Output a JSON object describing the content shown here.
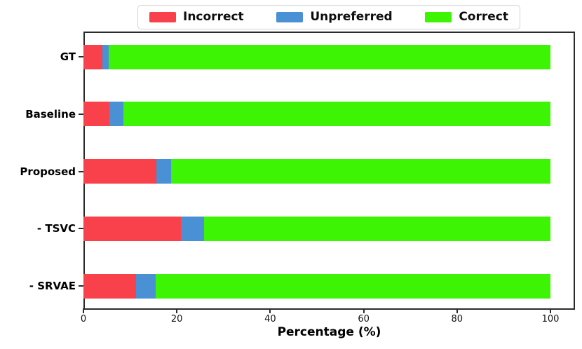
{
  "chart_data": {
    "type": "bar",
    "orientation": "horizontal",
    "stacked": true,
    "title": "",
    "xlabel": "Percentage (%)",
    "ylabel": "",
    "xlim": [
      0,
      105
    ],
    "xticks": [
      "0",
      "20",
      "40",
      "60",
      "80",
      "100"
    ],
    "xtick_values": [
      0,
      20,
      40,
      60,
      80,
      100
    ],
    "grid": false,
    "legend_position": "top-center",
    "categories": [
      "GT",
      "Baseline",
      "Proposed",
      "- TSVC",
      "- SRVAE"
    ],
    "series": [
      {
        "name": "Incorrect",
        "color": "#f8414b",
        "values": [
          4.1,
          5.5,
          15.6,
          20.9,
          11.2
        ]
      },
      {
        "name": "Unpreferred",
        "color": "#4a90d4",
        "values": [
          1.3,
          3.0,
          3.1,
          4.9,
          4.3
        ]
      },
      {
        "name": "Correct",
        "color": "#3df405",
        "values": [
          94.6,
          91.5,
          81.3,
          74.2,
          84.5
        ]
      }
    ]
  },
  "colors": {
    "incorrect": "#f8414b",
    "unpreferred": "#4a90d4",
    "correct": "#3df405",
    "spine": "#2b2b2b",
    "background": "#ffffff"
  }
}
